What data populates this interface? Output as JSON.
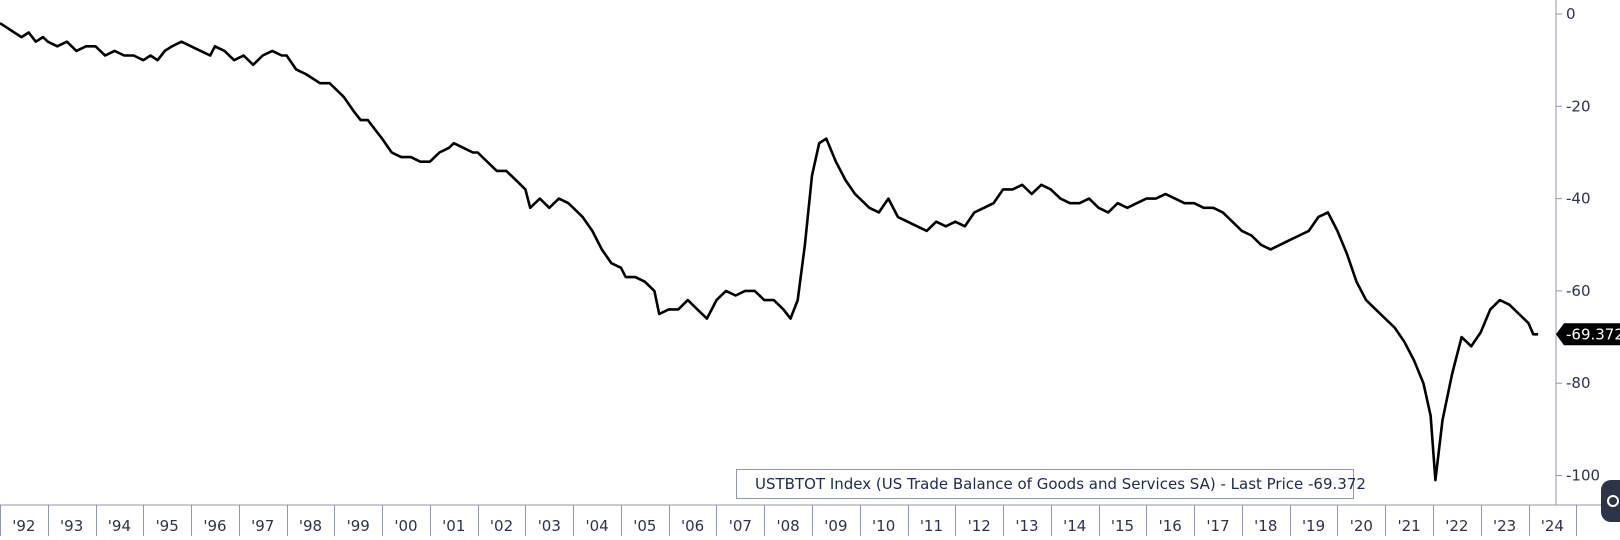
{
  "chart_data": {
    "type": "line",
    "title": "",
    "xlabel": "",
    "ylabel": "",
    "x_tick_labels": [
      "'92",
      "'93",
      "'94",
      "'95",
      "'96",
      "'97",
      "'98",
      "'99",
      "'00",
      "'01",
      "'02",
      "'03",
      "'04",
      "'05",
      "'06",
      "'07",
      "'08",
      "'09",
      "'10",
      "'11",
      "'12",
      "'13",
      "'14",
      "'15",
      "'16",
      "'17",
      "'18",
      "'19",
      "'20",
      "'21",
      "'22",
      "'23",
      "'24"
    ],
    "y_tick_labels": [
      "0",
      "-20",
      "-40",
      "-60",
      "-80",
      "-100"
    ],
    "y_ticks": [
      0,
      -20,
      -40,
      -60,
      -80,
      -100
    ],
    "ylim": [
      -105,
      2
    ],
    "xlim": [
      1992.0,
      2024.45
    ],
    "last_price_label": "-69.372",
    "legend": "USTBTOT Index (US Trade Balance of Goods and Services SA) - Last Price -69.372",
    "legend_position": "bottom-right",
    "grid": false,
    "colors": {
      "line": "#000000",
      "axis": "#8f97b3",
      "legend_text": "#1b2a56",
      "last_price_bg": "#000000",
      "last_price_text": "#ffffff"
    },
    "series": [
      {
        "name": "USTBTOT Index",
        "points": [
          [
            1992.0,
            -2
          ],
          [
            1992.15,
            -3
          ],
          [
            1992.3,
            -4
          ],
          [
            1992.45,
            -5
          ],
          [
            1992.6,
            -4
          ],
          [
            1992.75,
            -6
          ],
          [
            1992.9,
            -5
          ],
          [
            1993.0,
            -6
          ],
          [
            1993.2,
            -7
          ],
          [
            1993.4,
            -6
          ],
          [
            1993.6,
            -8
          ],
          [
            1993.8,
            -7
          ],
          [
            1994.0,
            -7
          ],
          [
            1994.2,
            -9
          ],
          [
            1994.4,
            -8
          ],
          [
            1994.6,
            -9
          ],
          [
            1994.8,
            -9
          ],
          [
            1995.0,
            -10
          ],
          [
            1995.15,
            -9
          ],
          [
            1995.3,
            -10
          ],
          [
            1995.45,
            -8
          ],
          [
            1995.6,
            -7
          ],
          [
            1995.8,
            -6
          ],
          [
            1996.0,
            -7
          ],
          [
            1996.2,
            -8
          ],
          [
            1996.4,
            -9
          ],
          [
            1996.5,
            -7
          ],
          [
            1996.7,
            -8
          ],
          [
            1996.9,
            -10
          ],
          [
            1997.1,
            -9
          ],
          [
            1997.3,
            -11
          ],
          [
            1997.5,
            -9
          ],
          [
            1997.7,
            -8
          ],
          [
            1997.9,
            -9
          ],
          [
            1998.0,
            -9
          ],
          [
            1998.2,
            -12
          ],
          [
            1998.4,
            -13
          ],
          [
            1998.55,
            -14
          ],
          [
            1998.7,
            -15
          ],
          [
            1998.9,
            -15
          ],
          [
            1999.0,
            -16
          ],
          [
            1999.2,
            -18
          ],
          [
            1999.4,
            -21
          ],
          [
            1999.55,
            -23
          ],
          [
            1999.7,
            -23
          ],
          [
            1999.85,
            -25
          ],
          [
            2000.0,
            -27
          ],
          [
            2000.2,
            -30
          ],
          [
            2000.4,
            -31
          ],
          [
            2000.6,
            -31
          ],
          [
            2000.8,
            -32
          ],
          [
            2001.0,
            -32
          ],
          [
            2001.2,
            -30
          ],
          [
            2001.4,
            -29
          ],
          [
            2001.5,
            -28
          ],
          [
            2001.7,
            -29
          ],
          [
            2001.9,
            -30
          ],
          [
            2002.0,
            -30
          ],
          [
            2002.2,
            -32
          ],
          [
            2002.4,
            -34
          ],
          [
            2002.6,
            -34
          ],
          [
            2002.8,
            -36
          ],
          [
            2003.0,
            -38
          ],
          [
            2003.1,
            -42
          ],
          [
            2003.3,
            -40
          ],
          [
            2003.5,
            -42
          ],
          [
            2003.7,
            -40
          ],
          [
            2003.9,
            -41
          ],
          [
            2004.0,
            -42
          ],
          [
            2004.2,
            -44
          ],
          [
            2004.4,
            -47
          ],
          [
            2004.6,
            -51
          ],
          [
            2004.8,
            -54
          ],
          [
            2005.0,
            -55
          ],
          [
            2005.1,
            -57
          ],
          [
            2005.3,
            -57
          ],
          [
            2005.5,
            -58
          ],
          [
            2005.7,
            -60
          ],
          [
            2005.8,
            -65
          ],
          [
            2006.0,
            -64
          ],
          [
            2006.2,
            -64
          ],
          [
            2006.4,
            -62
          ],
          [
            2006.6,
            -64
          ],
          [
            2006.8,
            -66
          ],
          [
            2007.0,
            -62
          ],
          [
            2007.2,
            -60
          ],
          [
            2007.4,
            -61
          ],
          [
            2007.6,
            -60
          ],
          [
            2007.8,
            -60
          ],
          [
            2008.0,
            -62
          ],
          [
            2008.2,
            -62
          ],
          [
            2008.4,
            -64
          ],
          [
            2008.55,
            -66
          ],
          [
            2008.7,
            -62
          ],
          [
            2008.85,
            -50
          ],
          [
            2009.0,
            -35
          ],
          [
            2009.15,
            -28
          ],
          [
            2009.3,
            -27
          ],
          [
            2009.5,
            -32
          ],
          [
            2009.7,
            -36
          ],
          [
            2009.9,
            -39
          ],
          [
            2010.0,
            -40
          ],
          [
            2010.2,
            -42
          ],
          [
            2010.4,
            -43
          ],
          [
            2010.6,
            -40
          ],
          [
            2010.8,
            -44
          ],
          [
            2011.0,
            -45
          ],
          [
            2011.2,
            -46
          ],
          [
            2011.4,
            -47
          ],
          [
            2011.6,
            -45
          ],
          [
            2011.8,
            -46
          ],
          [
            2012.0,
            -45
          ],
          [
            2012.2,
            -46
          ],
          [
            2012.4,
            -43
          ],
          [
            2012.6,
            -42
          ],
          [
            2012.8,
            -41
          ],
          [
            2013.0,
            -38
          ],
          [
            2013.2,
            -38
          ],
          [
            2013.4,
            -37
          ],
          [
            2013.6,
            -39
          ],
          [
            2013.8,
            -37
          ],
          [
            2014.0,
            -38
          ],
          [
            2014.2,
            -40
          ],
          [
            2014.4,
            -41
          ],
          [
            2014.6,
            -41
          ],
          [
            2014.8,
            -40
          ],
          [
            2015.0,
            -42
          ],
          [
            2015.2,
            -43
          ],
          [
            2015.4,
            -41
          ],
          [
            2015.6,
            -42
          ],
          [
            2015.8,
            -41
          ],
          [
            2016.0,
            -40
          ],
          [
            2016.2,
            -40
          ],
          [
            2016.4,
            -39
          ],
          [
            2016.6,
            -40
          ],
          [
            2016.8,
            -41
          ],
          [
            2017.0,
            -41
          ],
          [
            2017.2,
            -42
          ],
          [
            2017.4,
            -42
          ],
          [
            2017.6,
            -43
          ],
          [
            2017.8,
            -45
          ],
          [
            2018.0,
            -47
          ],
          [
            2018.2,
            -48
          ],
          [
            2018.4,
            -50
          ],
          [
            2018.6,
            -51
          ],
          [
            2018.8,
            -50
          ],
          [
            2019.0,
            -49
          ],
          [
            2019.2,
            -48
          ],
          [
            2019.4,
            -47
          ],
          [
            2019.6,
            -44
          ],
          [
            2019.8,
            -43
          ],
          [
            2020.0,
            -47
          ],
          [
            2020.2,
            -52
          ],
          [
            2020.4,
            -58
          ],
          [
            2020.6,
            -62
          ],
          [
            2020.8,
            -64
          ],
          [
            2021.0,
            -66
          ],
          [
            2021.2,
            -68
          ],
          [
            2021.4,
            -71
          ],
          [
            2021.6,
            -75
          ],
          [
            2021.8,
            -80
          ],
          [
            2021.95,
            -87
          ],
          [
            2022.05,
            -101
          ],
          [
            2022.2,
            -88
          ],
          [
            2022.4,
            -78
          ],
          [
            2022.6,
            -70
          ],
          [
            2022.8,
            -72
          ],
          [
            2023.0,
            -69
          ],
          [
            2023.2,
            -64
          ],
          [
            2023.4,
            -62
          ],
          [
            2023.6,
            -63
          ],
          [
            2023.8,
            -65
          ],
          [
            2024.0,
            -67
          ],
          [
            2024.1,
            -69.4
          ],
          [
            2024.2,
            -69.4
          ]
        ]
      }
    ]
  }
}
